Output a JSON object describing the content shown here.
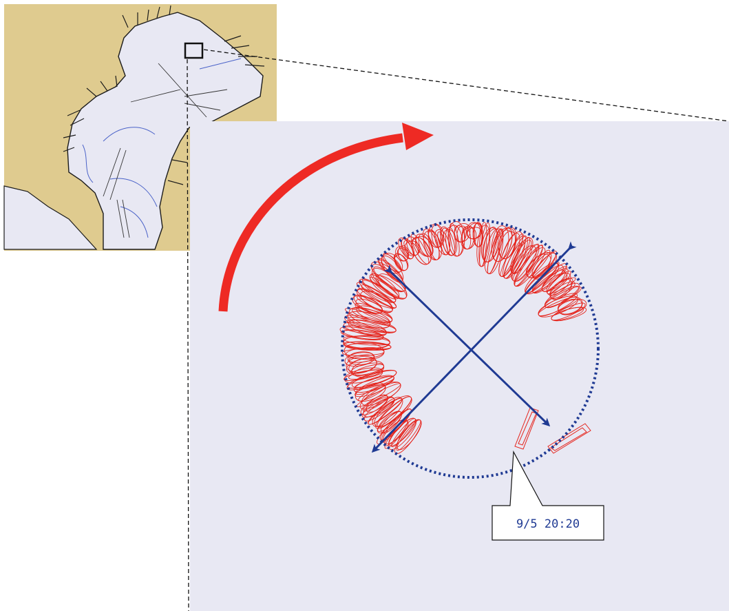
{
  "colors": {
    "land": "#dfcb8f",
    "water": "#e8e8f3",
    "coast": "#1b1b1b",
    "depth_contour": "#4a62c8",
    "track": "#e5231b",
    "arrow": "#ee2a24",
    "axis": "#1f3a93",
    "ellipse": "#1f3a93",
    "callout_border": "#111111",
    "locator_box": "#111111"
  },
  "inset_map": {
    "icon": "bay-map-thumbnail"
  },
  "detail_panel": {
    "rotation_arrow_icon": "clockwise-arc-arrow",
    "anchor_track_icon": "swinging-track-loops",
    "swing_ellipse_icon": "dotted-ellipse",
    "axes_icon": "crossed-double-arrows",
    "callout": {
      "label": "9/5 20:20"
    }
  }
}
